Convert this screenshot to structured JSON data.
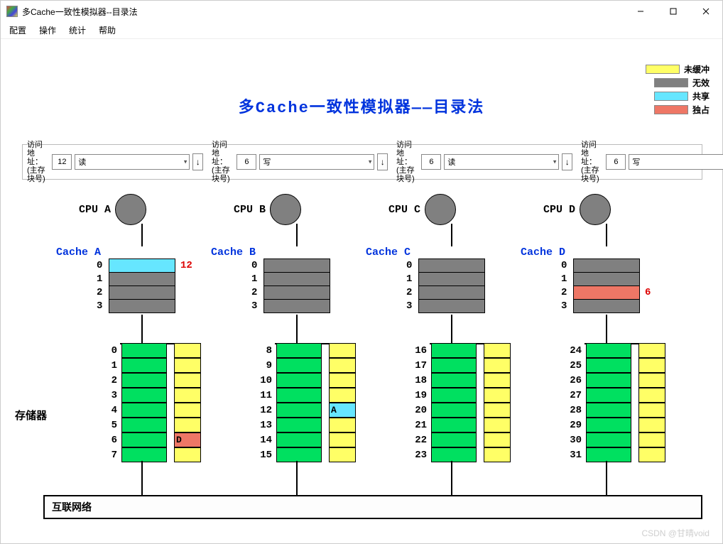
{
  "window": {
    "title": "多Cache一致性模拟器--目录法"
  },
  "menu": {
    "items": [
      "配置",
      "操作",
      "统计",
      "帮助"
    ]
  },
  "legend": {
    "items": [
      {
        "label": "未缓冲",
        "color": "#ffff66"
      },
      {
        "label": "无效",
        "color": "#808080"
      },
      {
        "label": "共享",
        "color": "#66e6ff"
      },
      {
        "label": "独占",
        "color": "#ee7766"
      }
    ]
  },
  "colors": {
    "title": "#0033dd",
    "cache_label": "#0033dd",
    "annot": "#dd0000",
    "mem_cell": "#00e060",
    "dir_default": "#ffff66",
    "invalid": "#808080",
    "shared": "#66e6ff",
    "exclusive": "#ee7766",
    "uncached": "#ffff66"
  },
  "page_title": "多Cache一致性模拟器——目录法",
  "ctrl": {
    "addr_label_l1": "访问地址：",
    "addr_label_l2": "(主存块号)",
    "groups": [
      {
        "addr": "12",
        "op": "读",
        "highlight": false
      },
      {
        "addr": "6",
        "op": "写",
        "highlight": false
      },
      {
        "addr": "6",
        "op": "读",
        "highlight": false
      },
      {
        "addr": "6",
        "op": "写",
        "highlight": true
      }
    ],
    "arrow": "↓"
  },
  "cpus": [
    {
      "name": "CPU A",
      "cache_label": "Cache A",
      "cache": [
        {
          "state": "shared",
          "annot": "12"
        },
        {
          "state": "invalid"
        },
        {
          "state": "invalid"
        },
        {
          "state": "invalid"
        }
      ],
      "mem_start": 0,
      "dir": [
        {
          "bg": "uncached"
        },
        {
          "bg": "uncached"
        },
        {
          "bg": "uncached"
        },
        {
          "bg": "uncached"
        },
        {
          "bg": "uncached"
        },
        {
          "bg": "uncached"
        },
        {
          "bg": "exclusive",
          "text": "D"
        },
        {
          "bg": "uncached"
        }
      ]
    },
    {
      "name": "CPU B",
      "cache_label": "Cache B",
      "cache": [
        {
          "state": "invalid"
        },
        {
          "state": "invalid"
        },
        {
          "state": "invalid"
        },
        {
          "state": "invalid"
        }
      ],
      "mem_start": 8,
      "dir": [
        {
          "bg": "uncached"
        },
        {
          "bg": "uncached"
        },
        {
          "bg": "uncached"
        },
        {
          "bg": "uncached"
        },
        {
          "bg": "shared",
          "text": "A"
        },
        {
          "bg": "uncached"
        },
        {
          "bg": "uncached"
        },
        {
          "bg": "uncached"
        }
      ]
    },
    {
      "name": "CPU C",
      "cache_label": "Cache C",
      "cache": [
        {
          "state": "invalid"
        },
        {
          "state": "invalid"
        },
        {
          "state": "invalid"
        },
        {
          "state": "invalid"
        }
      ],
      "mem_start": 16,
      "dir": [
        {
          "bg": "uncached"
        },
        {
          "bg": "uncached"
        },
        {
          "bg": "uncached"
        },
        {
          "bg": "uncached"
        },
        {
          "bg": "uncached"
        },
        {
          "bg": "uncached"
        },
        {
          "bg": "uncached"
        },
        {
          "bg": "uncached"
        }
      ]
    },
    {
      "name": "CPU D",
      "cache_label": "Cache D",
      "cache": [
        {
          "state": "invalid"
        },
        {
          "state": "invalid"
        },
        {
          "state": "exclusive",
          "annot": "6"
        },
        {
          "state": "invalid"
        }
      ],
      "mem_start": 24,
      "dir": [
        {
          "bg": "uncached"
        },
        {
          "bg": "uncached"
        },
        {
          "bg": "uncached"
        },
        {
          "bg": "uncached"
        },
        {
          "bg": "uncached"
        },
        {
          "bg": "uncached"
        },
        {
          "bg": "uncached"
        },
        {
          "bg": "uncached"
        }
      ]
    }
  ],
  "storage_label": "存储器",
  "bus_label": "互联网络",
  "watermark": "CSDN @甘晴void"
}
